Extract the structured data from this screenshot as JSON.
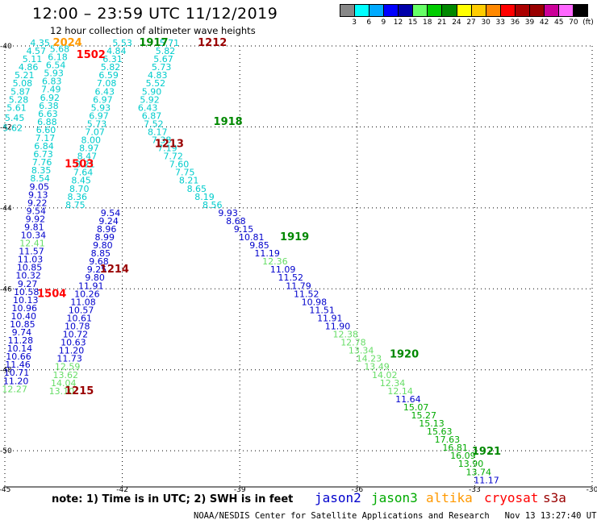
{
  "header": {
    "title": "12:00 – 23:59 UTC 11/12/2019",
    "subtitle": "12 hour collection of altimeter wave heights"
  },
  "legend": {
    "colors": [
      "#888888",
      "#00ffff",
      "#00aaff",
      "#0000ff",
      "#0000aa",
      "#66ff66",
      "#00cc00",
      "#008800",
      "#ffff00",
      "#ffcc00",
      "#ff8800",
      "#ff0000",
      "#aa0000",
      "#990000",
      "#cc0099",
      "#ff66ff",
      "#000000"
    ],
    "labels": [
      "3",
      "6",
      "9",
      "12",
      "15",
      "18",
      "21",
      "24",
      "27",
      "30",
      "33",
      "36",
      "39",
      "42",
      "45",
      "70",
      "(ft)"
    ]
  },
  "axes": {
    "x_ticks": [
      "-45",
      "-42",
      "-39",
      "-36",
      "-33",
      "-30"
    ],
    "y_ticks": [
      "-40",
      "-42",
      "-44",
      "-46",
      "-48",
      "-50"
    ]
  },
  "chart_data": {
    "type": "scatter",
    "x_range": [
      -45,
      -30
    ],
    "y_range": [
      -50,
      -40
    ],
    "tracks": [
      {
        "sat": "jason2",
        "c": "#00cccc",
        "pts": [
          [
            -44.1,
            -40.0,
            "4.35"
          ],
          [
            -44.2,
            -40.2,
            "4.57"
          ],
          [
            -44.3,
            -40.4,
            "5.11"
          ],
          [
            -44.4,
            -40.6,
            "4.86"
          ],
          [
            -44.5,
            -40.8,
            "5.21"
          ],
          [
            -44.55,
            -41.0,
            "5.08"
          ],
          [
            -44.6,
            -41.2,
            "5.87"
          ],
          [
            -44.65,
            -41.4,
            "5.28"
          ],
          [
            -44.7,
            -41.6,
            "5.61"
          ],
          [
            -44.75,
            -41.85,
            "5.45"
          ],
          [
            -44.8,
            -42.1,
            "5.62"
          ]
        ]
      },
      {
        "sat": "jason2",
        "c": "#00cccc",
        "pts": [
          [
            -43.6,
            -40.15,
            "5.68"
          ],
          [
            -43.65,
            -40.35,
            "6.18"
          ],
          [
            -43.7,
            -40.55,
            "6.54"
          ],
          [
            -43.75,
            -40.75,
            "5.93"
          ],
          [
            -43.8,
            -40.95,
            "6.83"
          ],
          [
            -43.82,
            -41.15,
            "7.49"
          ],
          [
            -43.85,
            -41.35,
            "6.92"
          ],
          [
            -43.88,
            -41.55,
            "6.38"
          ],
          [
            -43.9,
            -41.75,
            "6.63"
          ],
          [
            -43.92,
            -41.95,
            "6.88"
          ],
          [
            -43.95,
            -42.15,
            "6.60"
          ],
          [
            -43.97,
            -42.35,
            "7.17"
          ],
          [
            -44.0,
            -42.55,
            "6.84"
          ],
          [
            -44.02,
            -42.75,
            "6.73"
          ],
          [
            -44.05,
            -42.95,
            "7.76"
          ],
          [
            -44.07,
            -43.15,
            "8.35"
          ],
          [
            -44.1,
            -43.35,
            "8.54"
          ]
        ]
      },
      {
        "sat": "jason2",
        "c": "#0000cc",
        "pts": [
          [
            -44.12,
            -43.55,
            "9.05"
          ],
          [
            -44.15,
            -43.75,
            "9.13"
          ],
          [
            -44.17,
            -43.95,
            "9.22"
          ],
          [
            -44.2,
            -44.15,
            "9.54"
          ],
          [
            -44.22,
            -44.35,
            "9.92"
          ],
          [
            -44.25,
            -44.55,
            "9.81"
          ],
          [
            -44.27,
            -44.75,
            "10.34"
          ]
        ]
      },
      {
        "sat": "jason3",
        "c": "#66dd66",
        "pts": [
          [
            -44.3,
            -44.95,
            "12.41"
          ]
        ]
      },
      {
        "sat": "jason2",
        "c": "#0000cc",
        "pts": [
          [
            -44.32,
            -45.15,
            "11.57"
          ],
          [
            -44.35,
            -45.35,
            "11.03"
          ],
          [
            -44.37,
            -45.55,
            "10.85"
          ],
          [
            -44.4,
            -45.75,
            "10.32"
          ],
          [
            -44.42,
            -45.95,
            "9.27"
          ],
          [
            -44.45,
            -46.15,
            "10.58"
          ],
          [
            -44.47,
            -46.35,
            "10.13"
          ],
          [
            -44.5,
            -46.55,
            "10.96"
          ],
          [
            -44.52,
            -46.75,
            "10.40"
          ],
          [
            -44.55,
            -46.95,
            "10.85"
          ],
          [
            -44.57,
            -47.15,
            "9.74"
          ],
          [
            -44.6,
            -47.35,
            "11.28"
          ],
          [
            -44.62,
            -47.55,
            "10.14"
          ],
          [
            -44.65,
            -47.75,
            "10.66"
          ],
          [
            -44.67,
            -47.95,
            "11.46"
          ],
          [
            -44.7,
            -48.15,
            "10.71"
          ],
          [
            -44.72,
            -48.35,
            "11.20"
          ]
        ]
      },
      {
        "sat": "jason3",
        "c": "#66dd66",
        "pts": [
          [
            -44.75,
            -48.55,
            "12.27"
          ]
        ]
      },
      {
        "sat": "jason2",
        "c": "#00cccc",
        "pts": [
          [
            -42.0,
            -40.0,
            "5.53"
          ],
          [
            -42.15,
            -40.2,
            "4.84"
          ],
          [
            -42.25,
            -40.4,
            "6.31"
          ],
          [
            -42.3,
            -40.6,
            "5.82"
          ],
          [
            -42.35,
            -40.8,
            "6.59"
          ],
          [
            -42.4,
            -41.0,
            "7.08"
          ],
          [
            -42.45,
            -41.2,
            "6.43"
          ],
          [
            -42.5,
            -41.4,
            "6.97"
          ],
          [
            -42.55,
            -41.6,
            "5.93"
          ],
          [
            -42.6,
            -41.8,
            "6.97"
          ],
          [
            -42.65,
            -42.0,
            "5.73"
          ],
          [
            -42.7,
            -42.2,
            "7.07"
          ],
          [
            -42.8,
            -42.4,
            "8.00"
          ],
          [
            -42.85,
            -42.6,
            "8.97"
          ],
          [
            -42.9,
            -42.8,
            "8.47"
          ],
          [
            -42.95,
            -43.0,
            "8.21"
          ],
          [
            -43.0,
            -43.2,
            "7.64"
          ],
          [
            -43.05,
            -43.4,
            "8.45"
          ],
          [
            -43.1,
            -43.6,
            "8.70"
          ],
          [
            -43.15,
            -43.8,
            "8.36"
          ],
          [
            -43.2,
            -44.0,
            "8.75"
          ]
        ]
      },
      {
        "sat": "jason2",
        "c": "#0000cc",
        "pts": [
          [
            -42.3,
            -44.2,
            "9.54"
          ],
          [
            -42.35,
            -44.4,
            "9.24"
          ],
          [
            -42.4,
            -44.6,
            "8.96"
          ],
          [
            -42.45,
            -44.8,
            "8.99"
          ],
          [
            -42.5,
            -45.0,
            "9.80"
          ],
          [
            -42.55,
            -45.2,
            "8.85"
          ],
          [
            -42.6,
            -45.4,
            "9.68"
          ],
          [
            -42.65,
            -45.6,
            "9.25"
          ],
          [
            -42.7,
            -45.8,
            "9.80"
          ],
          [
            -42.8,
            -46.0,
            "11.91"
          ],
          [
            -42.9,
            -46.2,
            "10.26"
          ],
          [
            -43.0,
            -46.4,
            "11.08"
          ],
          [
            -43.05,
            -46.6,
            "10.57"
          ],
          [
            -43.1,
            -46.8,
            "10.61"
          ],
          [
            -43.15,
            -47.0,
            "10.78"
          ],
          [
            -43.2,
            -47.2,
            "10.72"
          ],
          [
            -43.25,
            -47.4,
            "10.63"
          ],
          [
            -43.3,
            -47.6,
            "11.20"
          ],
          [
            -43.35,
            -47.8,
            "11.73"
          ]
        ]
      },
      {
        "sat": "jason3",
        "c": "#66dd66",
        "pts": [
          [
            -43.4,
            -48.0,
            "12.59"
          ],
          [
            -43.45,
            -48.2,
            "13.62"
          ],
          [
            -43.5,
            -48.4,
            "14.04"
          ],
          [
            -43.55,
            -48.6,
            "13.10"
          ]
        ]
      },
      {
        "sat": "jason2",
        "c": "#00cccc",
        "pts": [
          [
            -40.8,
            -40.0,
            "5.71"
          ],
          [
            -40.9,
            -40.2,
            "5.82"
          ],
          [
            -40.95,
            -40.4,
            "5.67"
          ],
          [
            -41.0,
            -40.6,
            "5.73"
          ],
          [
            -41.1,
            -40.8,
            "4.83"
          ],
          [
            -41.15,
            -41.0,
            "5.52"
          ],
          [
            -41.25,
            -41.2,
            "5.90"
          ],
          [
            -41.3,
            -41.4,
            "5.92"
          ],
          [
            -41.35,
            -41.6,
            "6.43"
          ],
          [
            -41.25,
            -41.8,
            "6.87"
          ],
          [
            -41.2,
            -42.0,
            "7.52"
          ],
          [
            -41.1,
            -42.2,
            "8.17"
          ],
          [
            -41.0,
            -42.4,
            "7.38"
          ],
          [
            -40.85,
            -42.6,
            "7.19"
          ],
          [
            -40.7,
            -42.8,
            "7.72"
          ],
          [
            -40.55,
            -43.0,
            "7.60"
          ],
          [
            -40.4,
            -43.2,
            "7.75"
          ],
          [
            -40.3,
            -43.4,
            "8.21"
          ],
          [
            -40.1,
            -43.6,
            "8.65"
          ],
          [
            -39.9,
            -43.8,
            "8.19"
          ],
          [
            -39.7,
            -44.0,
            "8.56"
          ]
        ]
      },
      {
        "sat": "jason2",
        "c": "#0000cc",
        "pts": [
          [
            -39.3,
            -44.2,
            "9.93"
          ],
          [
            -39.1,
            -44.4,
            "8.68"
          ],
          [
            -38.9,
            -44.6,
            "9.15"
          ],
          [
            -38.7,
            -44.8,
            "10.81"
          ],
          [
            -38.5,
            -45.0,
            "9.85"
          ],
          [
            -38.3,
            -45.2,
            "11.19"
          ]
        ]
      },
      {
        "sat": "jason3",
        "c": "#66dd66",
        "pts": [
          [
            -38.1,
            -45.4,
            "12.36"
          ]
        ]
      },
      {
        "sat": "jason2",
        "c": "#0000cc",
        "pts": [
          [
            -37.9,
            -45.6,
            "11.09"
          ],
          [
            -37.7,
            -45.8,
            "11.52"
          ],
          [
            -37.5,
            -46.0,
            "11.79"
          ],
          [
            -37.3,
            -46.2,
            "11.52"
          ],
          [
            -37.1,
            -46.4,
            "10.98"
          ],
          [
            -36.9,
            -46.6,
            "11.51"
          ],
          [
            -36.7,
            -46.8,
            "11.91"
          ],
          [
            -36.5,
            -47.0,
            "11.90"
          ]
        ]
      },
      {
        "sat": "jason3",
        "c": "#66dd66",
        "pts": [
          [
            -36.3,
            -47.2,
            "12.38"
          ],
          [
            -36.1,
            -47.4,
            "12.78"
          ],
          [
            -35.9,
            -47.6,
            "13.34"
          ],
          [
            -35.7,
            -47.8,
            "14.23"
          ],
          [
            -35.5,
            -48.0,
            "13.49"
          ],
          [
            -35.3,
            -48.2,
            "14.02"
          ],
          [
            -35.1,
            -48.4,
            "12.34"
          ],
          [
            -34.9,
            -48.6,
            "12.14"
          ]
        ]
      },
      {
        "sat": "jason2",
        "c": "#0000cc",
        "pts": [
          [
            -34.7,
            -48.8,
            "11.64"
          ]
        ]
      },
      {
        "sat": "jason3",
        "c": "#00aa00",
        "pts": [
          [
            -34.5,
            -49.0,
            "15.07"
          ],
          [
            -34.3,
            -49.2,
            "15.27"
          ],
          [
            -34.1,
            -49.4,
            "15.13"
          ],
          [
            -33.9,
            -49.6,
            "15.63"
          ],
          [
            -33.7,
            -49.8,
            "17.63"
          ],
          [
            -33.5,
            -50.0,
            "16.81"
          ],
          [
            -33.3,
            -50.2,
            "16.09"
          ],
          [
            -33.1,
            -50.4,
            "13.90"
          ],
          [
            -32.9,
            -50.6,
            "13.74"
          ]
        ]
      },
      {
        "sat": "jason2",
        "c": "#0000cc",
        "pts": [
          [
            -32.7,
            -50.8,
            "11.17"
          ]
        ]
      }
    ],
    "time_labels": [
      {
        "x": -43.4,
        "y": -40.0,
        "t": "2024",
        "c": "#ff9900"
      },
      {
        "x": -42.8,
        "y": -40.3,
        "t": "1502",
        "c": "#ff0000"
      },
      {
        "x": -41.2,
        "y": -40.0,
        "t": "1917",
        "c": "#008800"
      },
      {
        "x": -39.7,
        "y": -40.0,
        "t": "1212",
        "c": "#990000"
      },
      {
        "x": -39.3,
        "y": -41.95,
        "t": "1918",
        "c": "#008800"
      },
      {
        "x": -40.8,
        "y": -42.5,
        "t": "1213",
        "c": "#990000"
      },
      {
        "x": -43.1,
        "y": -43.0,
        "t": "1503",
        "c": "#ff0000"
      },
      {
        "x": -37.6,
        "y": -44.8,
        "t": "1919",
        "c": "#008800"
      },
      {
        "x": -42.2,
        "y": -45.6,
        "t": "1214",
        "c": "#990000"
      },
      {
        "x": -43.8,
        "y": -46.2,
        "t": "1504",
        "c": "#ff0000"
      },
      {
        "x": -34.8,
        "y": -47.7,
        "t": "1920",
        "c": "#008800"
      },
      {
        "x": -43.1,
        "y": -48.6,
        "t": "1215",
        "c": "#990000"
      },
      {
        "x": -32.7,
        "y": -50.1,
        "t": "1921",
        "c": "#008800"
      }
    ]
  },
  "footer": {
    "note": "note: 1) Time is in UTC; 2) SWH is in feet",
    "satellites": [
      {
        "name": "jason2",
        "color": "#0000cc"
      },
      {
        "name": "jason3",
        "color": "#00aa00"
      },
      {
        "name": "altika",
        "color": "#ff9900"
      },
      {
        "name": "cryosat",
        "color": "#ff0000"
      },
      {
        "name": "s3a",
        "color": "#990000"
      }
    ],
    "credit": "NOAA/NESDIS Center for Satellite Applications and Research   Nov 13 13:27:40 UTC 2019"
  }
}
